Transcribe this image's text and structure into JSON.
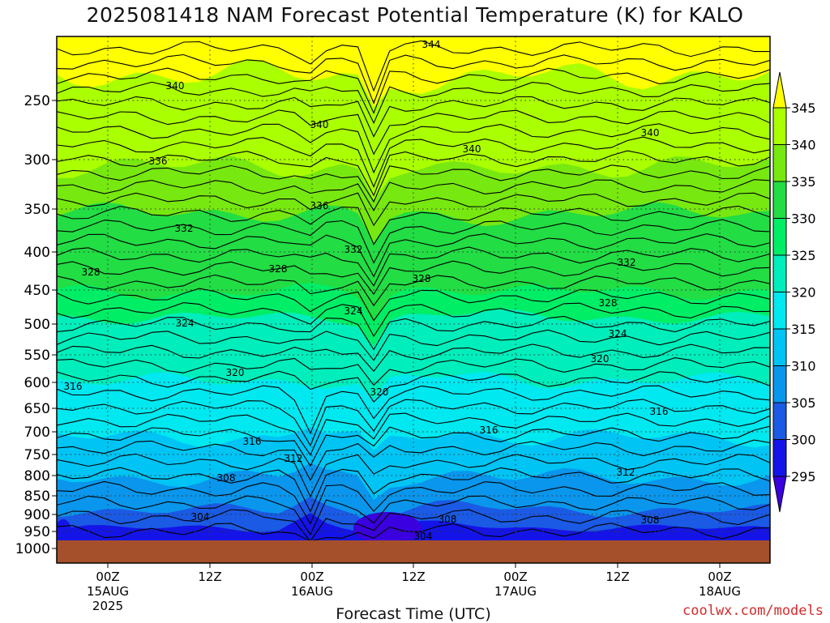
{
  "chart_data": {
    "type": "contour",
    "title": "2025081418 NAM Forecast Potential Temperature (K) for KALO",
    "xlabel": "Forecast Time (UTC)",
    "ylabel": "",
    "credit": "coolwx.com/models",
    "y_axis": {
      "scale": "pressure (reversed, log-like)",
      "range": [
        1000,
        200
      ],
      "ticks": [
        250,
        300,
        350,
        400,
        450,
        500,
        550,
        600,
        650,
        700,
        750,
        800,
        850,
        900,
        950,
        1000
      ]
    },
    "x_axis": {
      "ticks": [
        {
          "label": [
            "00Z",
            "15AUG",
            "2025"
          ],
          "time": "2025-08-15 00Z"
        },
        {
          "label": [
            "12Z"
          ],
          "time": "2025-08-15 12Z"
        },
        {
          "label": [
            "00Z",
            "16AUG"
          ],
          "time": "2025-08-16 00Z"
        },
        {
          "label": [
            "12Z"
          ],
          "time": "2025-08-16 12Z"
        },
        {
          "label": [
            "00Z",
            "17AUG"
          ],
          "time": "2025-08-17 00Z"
        },
        {
          "label": [
            "12Z"
          ],
          "time": "2025-08-17 12Z"
        },
        {
          "label": [
            "00Z",
            "18AUG"
          ],
          "time": "2025-08-18 00Z"
        }
      ]
    },
    "colorbar": {
      "labels": [
        345,
        340,
        335,
        330,
        325,
        320,
        315,
        310,
        305,
        300,
        295
      ],
      "bins": [
        {
          "range": [
            340,
            345
          ],
          "color": "#aaff00"
        },
        {
          "range": [
            335,
            340
          ],
          "color": "#77e810"
        },
        {
          "range": [
            330,
            335
          ],
          "color": "#22dd44"
        },
        {
          "range": [
            325,
            330
          ],
          "color": "#00ee66"
        },
        {
          "range": [
            320,
            325
          ],
          "color": "#00eebb"
        },
        {
          "range": [
            315,
            320
          ],
          "color": "#00e8f0"
        },
        {
          "range": [
            310,
            315
          ],
          "color": "#00c4f4"
        },
        {
          "range": [
            305,
            310
          ],
          "color": "#0a96ec"
        },
        {
          "range": [
            300,
            305
          ],
          "color": "#1a5ae4"
        },
        {
          "range": [
            295,
            300
          ],
          "color": "#1414e8"
        }
      ],
      "above_color": "#ffff00",
      "below_color": "#3a00e0"
    },
    "contour_labels": [
      "344",
      "340",
      "340",
      "340",
      "340",
      "336",
      "336",
      "332",
      "332",
      "332",
      "328",
      "328",
      "328",
      "328",
      "324",
      "324",
      "324",
      "320",
      "320",
      "320",
      "316",
      "316",
      "316",
      "316",
      "312",
      "312",
      "308",
      "308",
      "308",
      "304",
      "304"
    ],
    "ground_color": "#a5502a"
  }
}
